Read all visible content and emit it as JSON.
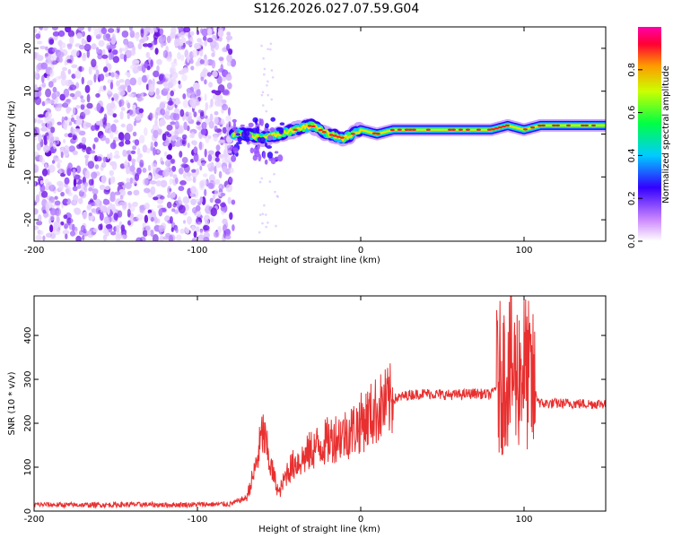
{
  "title": "S126.2026.027.07.59.G04",
  "chart_data": [
    {
      "type": "heatmap",
      "xlabel": "Height of straight line (km)",
      "ylabel": "Frequency (Hz)",
      "xlim": [
        -200,
        150
      ],
      "ylim": [
        -25,
        25
      ],
      "xticks": [
        -200,
        -100,
        0,
        100
      ],
      "yticks": [
        20,
        10,
        0,
        -10,
        -20
      ],
      "grid": false,
      "noise_region_x": [
        -200,
        -78
      ],
      "signal_track": {
        "x": [
          -78,
          -70,
          -60,
          -50,
          -40,
          -30,
          -20,
          -10,
          0,
          10,
          20,
          30,
          40,
          50,
          60,
          70,
          80,
          90,
          100,
          110,
          120,
          130,
          140,
          150
        ],
        "y": [
          0,
          0,
          -1,
          0,
          1,
          2,
          0,
          -1,
          1,
          0,
          1,
          1,
          1,
          1,
          1,
          1,
          1,
          2,
          1,
          2,
          2,
          2,
          2,
          2
        ]
      },
      "colorbar": {
        "label": "Normalized spectral amplitude",
        "range": [
          0,
          1
        ],
        "ticks": [
          "0.0",
          "0.2",
          "0.4",
          "0.6",
          "0.8"
        ]
      }
    },
    {
      "type": "line",
      "xlabel": "Height of straight line (km)",
      "ylabel": "SNR (10 * v/v)",
      "xlim": [
        -200,
        150
      ],
      "ylim": [
        0,
        490
      ],
      "xticks": [
        -200,
        -100,
        0,
        100
      ],
      "yticks": [
        0,
        100,
        200,
        300,
        400
      ],
      "grid": false,
      "series": [
        {
          "color": "#e83030",
          "x": [
            -200,
            -180,
            -160,
            -140,
            -120,
            -100,
            -80,
            -70,
            -65,
            -60,
            -55,
            -50,
            -45,
            -40,
            -35,
            -30,
            -25,
            -20,
            -15,
            -10,
            -5,
            0,
            10,
            20,
            30,
            40,
            50,
            60,
            70,
            80,
            85,
            90,
            95,
            100,
            105,
            110,
            120,
            130,
            140,
            150
          ],
          "values": [
            15,
            14,
            14,
            15,
            14,
            15,
            16,
            30,
            90,
            180,
            100,
            40,
            90,
            110,
            120,
            140,
            150,
            160,
            170,
            175,
            185,
            200,
            230,
            255,
            265,
            268,
            265,
            265,
            268,
            265,
            300,
            320,
            310,
            330,
            280,
            245,
            245,
            245,
            244,
            245
          ]
        }
      ]
    }
  ]
}
